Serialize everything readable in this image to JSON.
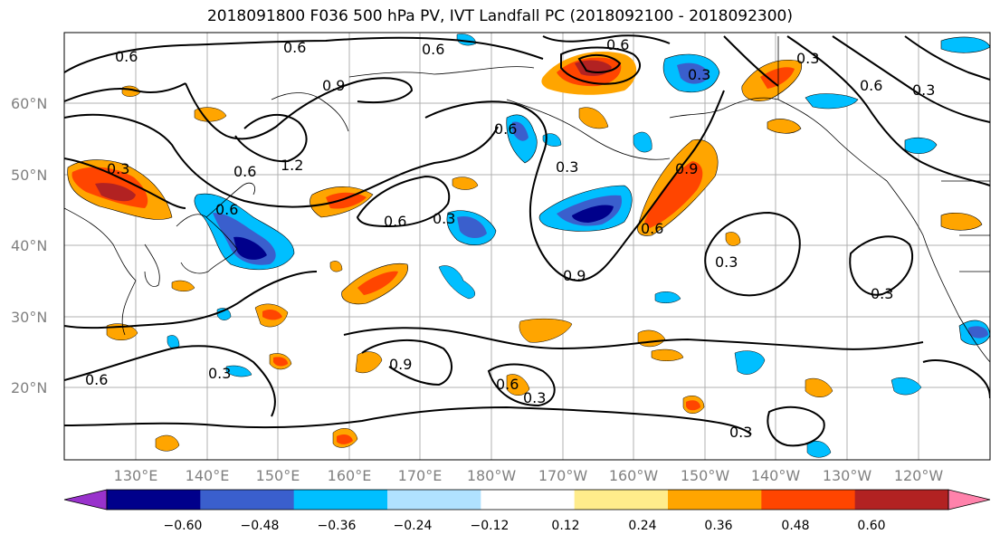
{
  "title": "2018091800 F036 500 hPa PV, IVT Landfall PC (2018092100 - 2018092300)",
  "lat_labels": [
    "60°N",
    "50°N",
    "40°N",
    "30°N",
    "20°N"
  ],
  "lon_labels": [
    "130°E",
    "140°E",
    "150°E",
    "160°E",
    "170°E",
    "180°W",
    "170°W",
    "160°W",
    "150°W",
    "140°W",
    "130°W",
    "120°W"
  ],
  "colorbar": {
    "ticks": [
      "−0.60",
      "−0.48",
      "−0.36",
      "−0.24",
      "−0.12",
      "0.12",
      "0.24",
      "0.36",
      "0.48",
      "0.60"
    ],
    "colors": [
      "#9932cc",
      "#00008b",
      "#3a5fcd",
      "#00bfff",
      "#b0e2ff",
      "#ffffff",
      "#ffec8b",
      "#ffa500",
      "#ff4500",
      "#b22222",
      "#ff82ab"
    ]
  },
  "contour_labels": [
    "0.6",
    "0.6",
    "0.6",
    "0.9",
    "0.3",
    "0.6",
    "0.6",
    "1.2",
    "0.6",
    "0.3",
    "0.6",
    "0.3",
    "0.9",
    "0.6",
    "0.9",
    "0.6",
    "0.3",
    "0.3",
    "0.6",
    "0.3",
    "0.3",
    "0.3",
    "0.6",
    "0.3",
    "0.9",
    "0.3",
    "0.6",
    "0.3"
  ]
}
